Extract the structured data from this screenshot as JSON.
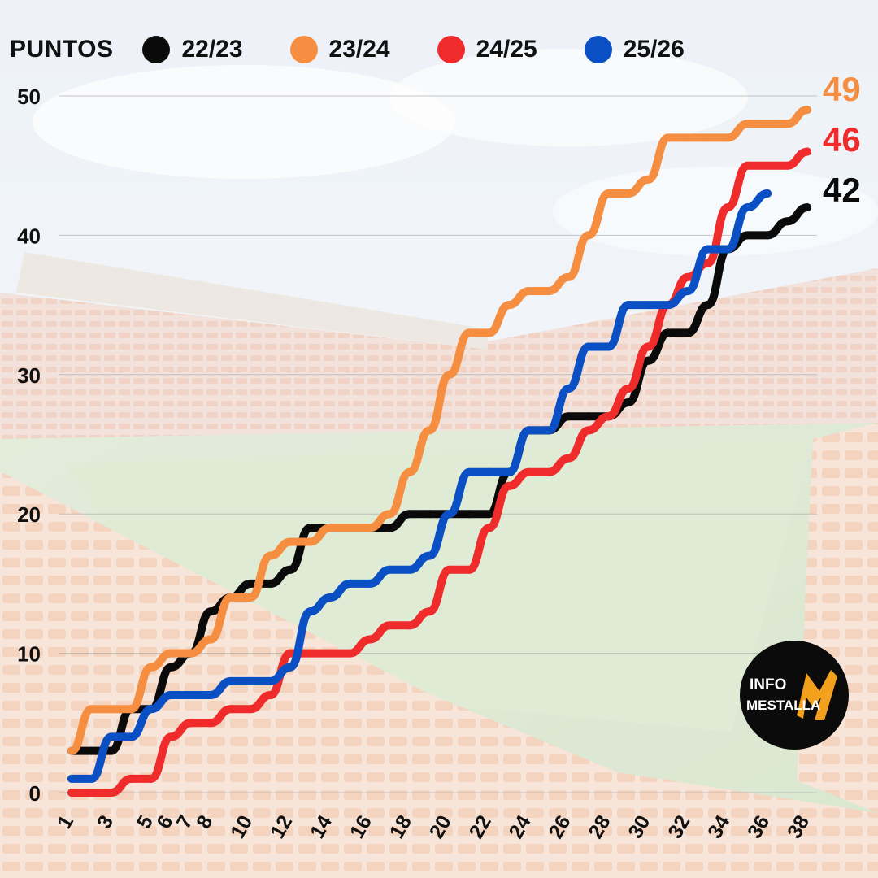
{
  "legend": {
    "title": "PUNTOS",
    "items": [
      {
        "label": "22/23",
        "color": "#0a0a0a"
      },
      {
        "label": "23/24",
        "color": "#f68e42"
      },
      {
        "label": "24/25",
        "color": "#ef2b2b"
      },
      {
        "label": "25/26",
        "color": "#0a4fc4"
      }
    ]
  },
  "end_labels": [
    {
      "text": "49",
      "color": "#f68e42"
    },
    {
      "text": "46",
      "color": "#ef2b2b"
    },
    {
      "text": "42",
      "color": "#0a0a0a"
    }
  ],
  "logo": {
    "line1": "INFO",
    "line2": "MESTALLA"
  },
  "chart_data": {
    "type": "line",
    "ylim": [
      0,
      50
    ],
    "xlim": [
      1,
      38
    ],
    "y_ticks": [
      0,
      10,
      20,
      30,
      40,
      50
    ],
    "x_ticks": [
      "1",
      "3",
      "5",
      "6",
      "7",
      "8",
      "10",
      "12",
      "14",
      "16",
      "18",
      "20",
      "22",
      "24",
      "26",
      "28",
      "30",
      "32",
      "34",
      "36",
      "38"
    ],
    "series": [
      {
        "name": "22/23",
        "color": "#0a0a0a",
        "x": [
          1,
          2,
          3,
          4,
          5,
          6,
          7,
          8,
          9,
          10,
          11,
          12,
          13,
          14,
          15,
          16,
          17,
          18,
          19,
          20,
          21,
          22,
          23,
          24,
          25,
          26,
          27,
          28,
          29,
          30,
          31,
          32,
          33,
          34,
          35,
          36,
          37,
          38
        ],
        "y": [
          3,
          3,
          3,
          6,
          6,
          9,
          10,
          13,
          14,
          15,
          15,
          16,
          19,
          19,
          19,
          19,
          19,
          20,
          20,
          20,
          20,
          20,
          23,
          26,
          26,
          27,
          27,
          27,
          28,
          31,
          33,
          33,
          35,
          39,
          40,
          40,
          41,
          42
        ]
      },
      {
        "name": "23/24",
        "color": "#f68e42",
        "x": [
          1,
          2,
          3,
          4,
          5,
          6,
          7,
          8,
          9,
          10,
          11,
          12,
          13,
          14,
          15,
          16,
          17,
          18,
          19,
          20,
          21,
          22,
          23,
          24,
          25,
          26,
          27,
          28,
          29,
          30,
          31,
          32,
          33,
          34,
          35,
          36,
          37,
          38
        ],
        "y": [
          3,
          6,
          6,
          6,
          9,
          10,
          10,
          11,
          14,
          14,
          17,
          18,
          18,
          19,
          19,
          19,
          20,
          23,
          26,
          30,
          33,
          33,
          35,
          36,
          36,
          37,
          40,
          43,
          43,
          44,
          47,
          47,
          47,
          47,
          48,
          48,
          48,
          49
        ]
      },
      {
        "name": "24/25",
        "color": "#ef2b2b",
        "x": [
          1,
          2,
          3,
          4,
          5,
          6,
          7,
          8,
          9,
          10,
          11,
          12,
          13,
          14,
          15,
          16,
          17,
          18,
          19,
          20,
          21,
          22,
          23,
          24,
          25,
          26,
          27,
          28,
          29,
          30,
          31,
          32,
          33,
          34,
          35,
          36,
          37,
          38
        ],
        "y": [
          0,
          0,
          0,
          1,
          1,
          4,
          5,
          5,
          6,
          6,
          7,
          10,
          10,
          10,
          10,
          11,
          12,
          12,
          13,
          16,
          16,
          19,
          22,
          23,
          23,
          24,
          26,
          27,
          29,
          32,
          35,
          37,
          38,
          42,
          45,
          45,
          45,
          46
        ]
      },
      {
        "name": "25/26",
        "color": "#0a4fc4",
        "x": [
          1,
          2,
          3,
          4,
          5,
          6,
          7,
          8,
          9,
          10,
          11,
          12,
          13,
          14,
          15,
          16,
          17,
          18,
          19,
          20,
          21,
          22,
          23,
          24,
          25,
          26,
          27,
          28,
          29,
          30,
          31,
          32,
          33,
          34,
          35,
          36
        ],
        "y": [
          1,
          1,
          4,
          4,
          6,
          7,
          7,
          7,
          8,
          8,
          8,
          9,
          13,
          14,
          15,
          15,
          16,
          16,
          17,
          20,
          23,
          23,
          23,
          26,
          26,
          29,
          32,
          32,
          35,
          35,
          35,
          36,
          39,
          39,
          42,
          43
        ]
      }
    ]
  }
}
